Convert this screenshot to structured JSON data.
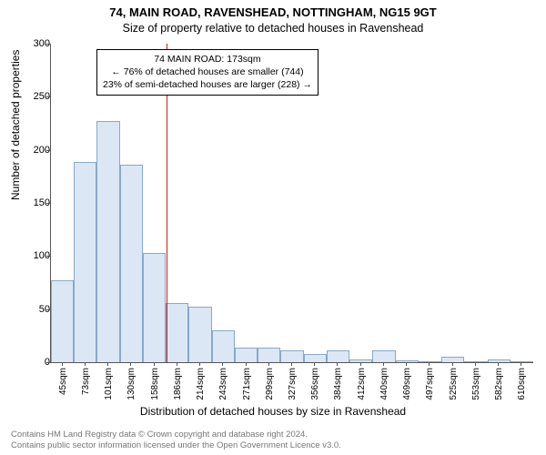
{
  "supertitle": "74, MAIN ROAD, RAVENSHEAD, NOTTINGHAM, NG15 9GT",
  "subtitle": "Size of property relative to detached houses in Ravenshead",
  "ylabel": "Number of detached properties",
  "xlabel": "Distribution of detached houses by size in Ravenshead",
  "footer_line1": "Contains HM Land Registry data © Crown copyright and database right 2024.",
  "footer_line2": "Contains public sector information licensed under the Open Government Licence v3.0.",
  "annotation": {
    "line1": "74 MAIN ROAD: 173sqm",
    "line2": "← 76% of detached houses are smaller (744)",
    "line3": "23% of semi-detached houses are larger (228) →"
  },
  "reference_x_value": 173,
  "reference_color": "#c81e1e",
  "chart": {
    "type": "histogram",
    "x_categories": [
      "45sqm",
      "73sqm",
      "101sqm",
      "130sqm",
      "158sqm",
      "186sqm",
      "214sqm",
      "243sqm",
      "271sqm",
      "299sqm",
      "327sqm",
      "356sqm",
      "384sqm",
      "412sqm",
      "440sqm",
      "469sqm",
      "497sqm",
      "525sqm",
      "553sqm",
      "582sqm",
      "610sqm"
    ],
    "x_numeric": [
      45,
      73,
      101,
      130,
      158,
      186,
      214,
      243,
      271,
      299,
      327,
      356,
      384,
      412,
      440,
      469,
      497,
      525,
      553,
      582,
      610
    ],
    "values": [
      77,
      189,
      227,
      186,
      103,
      56,
      52,
      30,
      14,
      14,
      11,
      8,
      11,
      3,
      11,
      2,
      0,
      5,
      0,
      3,
      0
    ],
    "bar_fill": "#dbe7f5",
    "bar_stroke": "#88a8cb",
    "ylim": [
      0,
      300
    ],
    "ytick_step": 50,
    "plot_background": "#ffffff"
  }
}
